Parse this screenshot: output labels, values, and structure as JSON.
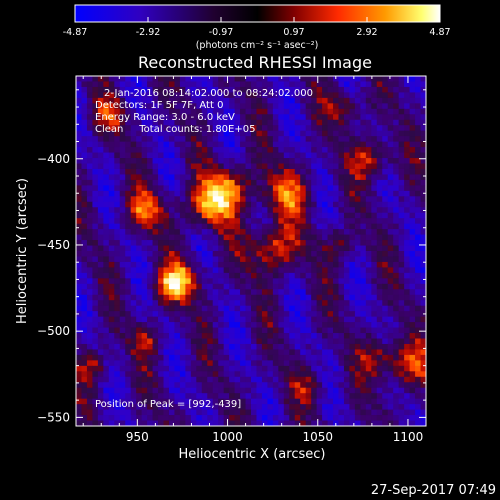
{
  "colorbar": {
    "min_label": "-4.87",
    "tick_labels": [
      "-2.92",
      "-0.97",
      "0.97",
      "2.92"
    ],
    "max_label": "4.87",
    "units": "(photons cm⁻² s⁻¹ asec⁻²)",
    "colors": [
      "#0000ff",
      "#2a00b0",
      "#000000",
      "#7a0000",
      "#ff2000",
      "#ff8c00",
      "#ffff60",
      "#ffffff"
    ]
  },
  "chart_data": {
    "type": "heatmap",
    "title": "Reconstructed RHESSI Image",
    "xlabel": "Heliocentric X (arcsec)",
    "ylabel": "Heliocentric Y (arcsec)",
    "xlim": [
      916,
      1110
    ],
    "ylim": [
      -555,
      -352
    ],
    "x_ticks": [
      950,
      1000,
      1050,
      1100
    ],
    "y_ticks": [
      -400,
      -450,
      -500,
      -550
    ],
    "x_tick_labels": [
      "950",
      "1000",
      "1050",
      "1100"
    ],
    "y_tick_labels": [
      "−400",
      "−450",
      "−500",
      "−550"
    ],
    "value_range": [
      -4.87,
      4.87
    ],
    "peak": [
      992,
      -439
    ],
    "sources": [
      {
        "x": 990,
        "y": -428,
        "amp": 4.6,
        "sigma": 9
      },
      {
        "x": 1000,
        "y": -416,
        "amp": 4.2,
        "sigma": 9
      },
      {
        "x": 1025,
        "y": -452,
        "amp": 4.0,
        "sigma": 10
      },
      {
        "x": 1032,
        "y": -420,
        "amp": 3.6,
        "sigma": 10
      },
      {
        "x": 955,
        "y": -430,
        "amp": 3.8,
        "sigma": 8
      },
      {
        "x": 935,
        "y": -375,
        "amp": 2.8,
        "sigma": 7
      },
      {
        "x": 975,
        "y": -470,
        "amp": 3.6,
        "sigma": 8
      },
      {
        "x": 968,
        "y": -475,
        "amp": 3.0,
        "sigma": 7
      },
      {
        "x": 1080,
        "y": -400,
        "amp": 3.5,
        "sigma": 8
      },
      {
        "x": 1065,
        "y": -370,
        "amp": 2.9,
        "sigma": 7
      },
      {
        "x": 1100,
        "y": -520,
        "amp": 3.2,
        "sigma": 9
      },
      {
        "x": 1085,
        "y": -515,
        "amp": 2.6,
        "sigma": 8
      },
      {
        "x": 925,
        "y": -520,
        "amp": 2.6,
        "sigma": 7
      },
      {
        "x": 955,
        "y": -505,
        "amp": 2.4,
        "sigma": 6
      },
      {
        "x": 1062,
        "y": -450,
        "amp": 2.3,
        "sigma": 7
      },
      {
        "x": 1045,
        "y": -532,
        "amp": 2.0,
        "sigma": 7
      }
    ]
  },
  "info": {
    "time_range": "2-Jan-2016 08:14:02.000 to 08:24:02.000",
    "detectors": "Detectors: 1F 5F 7F, Att 0",
    "energy": "Energy Range: 3.0 - 6.0 keV",
    "clean": "Clean     Total counts: 1.80E+05",
    "peak": "Position of Peak = [992,-439]"
  },
  "timestamp": "27-Sep-2017 07:49"
}
